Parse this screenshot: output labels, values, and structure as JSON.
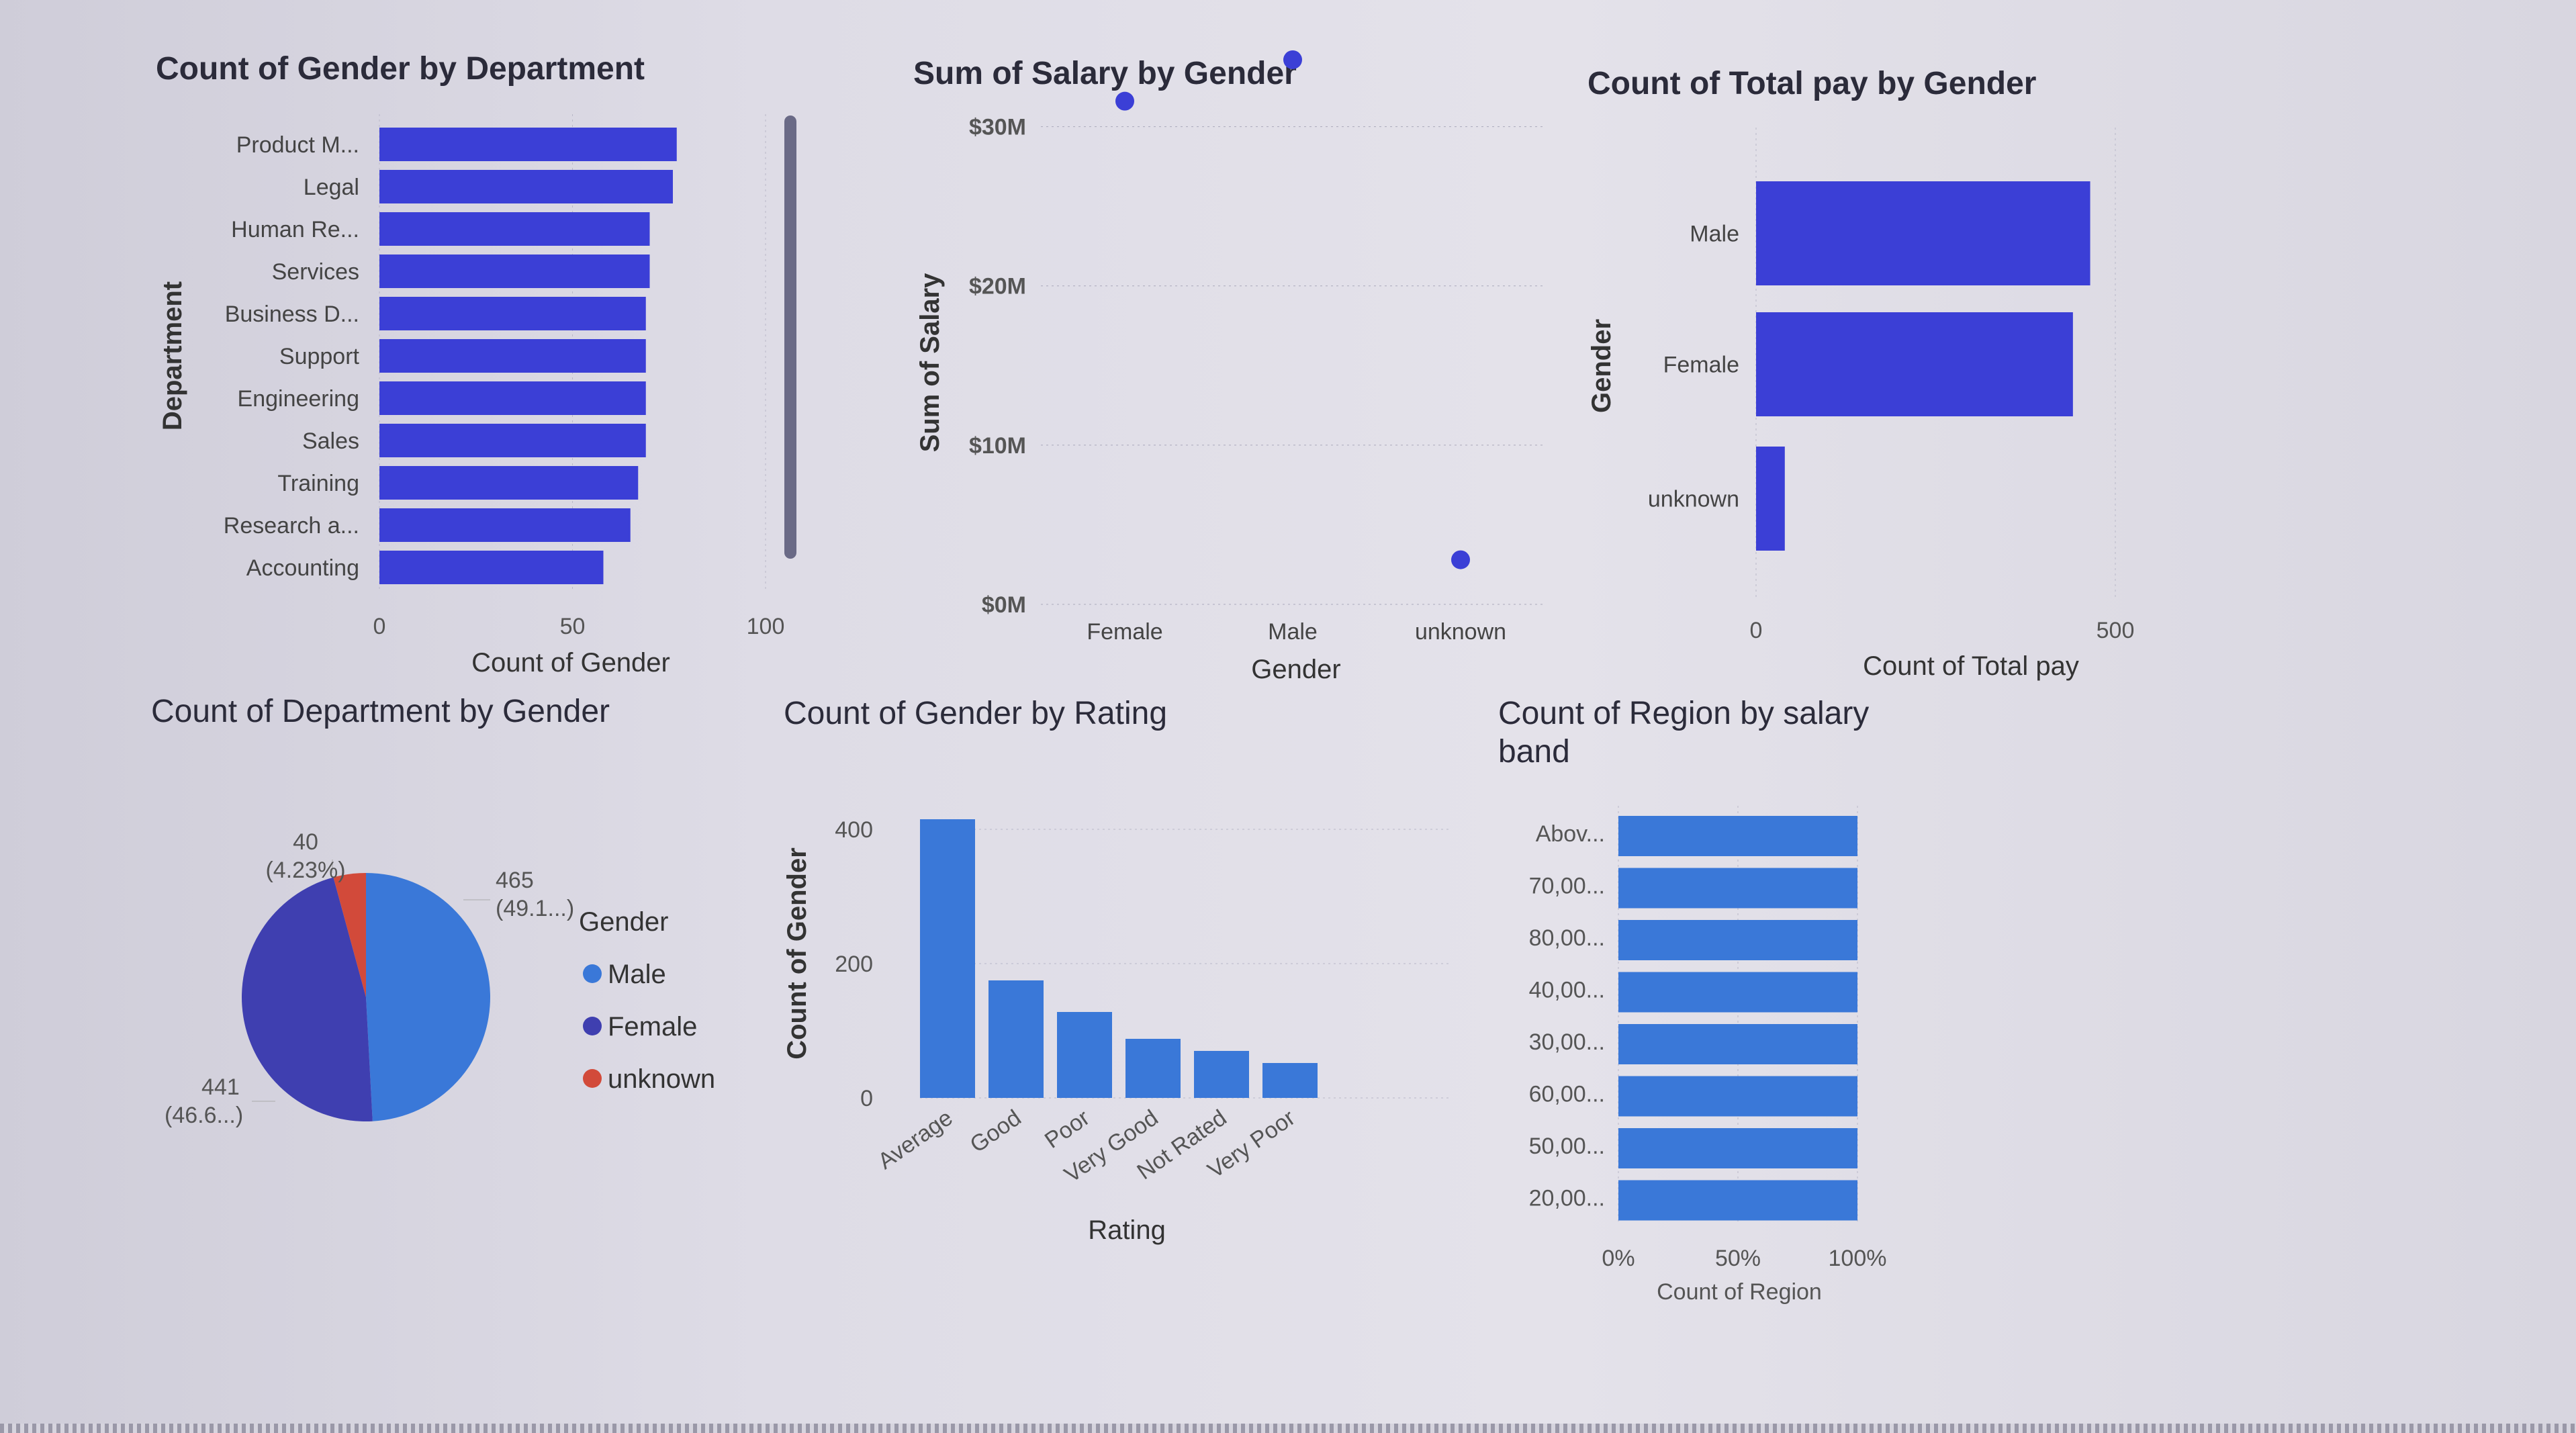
{
  "charts": [
    {
      "type": "bar",
      "title": "Count of Gender by Department",
      "xlabel": "Count of Gender",
      "ylabel": "Department",
      "xlim": [
        0,
        100
      ],
      "xticks": [
        "0",
        "50",
        "100"
      ],
      "categories": [
        "Product M...",
        "Legal",
        "Human Re...",
        "Services",
        "Business D...",
        "Support",
        "Engineering",
        "Sales",
        "Training",
        "Research a...",
        "Accounting"
      ],
      "values": [
        77,
        76,
        70,
        70,
        69,
        69,
        69,
        69,
        67,
        65,
        58
      ],
      "color": "#3b3fd6"
    },
    {
      "type": "scatter",
      "title": "Sum of Salary by Gender",
      "xlabel": "Gender",
      "ylabel": "Sum of Salary",
      "ylim": [
        0,
        35
      ],
      "yticks": [
        "$0M",
        "$10M",
        "$20M",
        "$30M"
      ],
      "categories": [
        "Female",
        "Male",
        "unknown"
      ],
      "values": [
        31.6,
        34.2,
        2.8
      ],
      "color": "#3b3fd6"
    },
    {
      "type": "bar",
      "title": "Count of Total pay by Gender",
      "xlabel": "Count of Total pay",
      "ylabel": "Gender",
      "xlim": [
        0,
        500
      ],
      "xticks": [
        "0",
        "500"
      ],
      "categories": [
        "Male",
        "Female",
        "unknown"
      ],
      "values": [
        465,
        441,
        40
      ],
      "color": "#3b3fd6"
    },
    {
      "type": "pie",
      "title": "Count of Department by Gender",
      "legend_title": "Gender",
      "legend_position": "right",
      "categories": [
        "Male",
        "Female",
        "unknown"
      ],
      "values": [
        465,
        441,
        40
      ],
      "labels": [
        {
          "value": "465",
          "pct": "(49.1...)"
        },
        {
          "value": "441",
          "pct": "(46.6...)"
        },
        {
          "value": "40",
          "pct": "(4.23%)"
        }
      ],
      "colors": [
        "#3a78d8",
        "#3f3fb0",
        "#d24a3a"
      ]
    },
    {
      "type": "bar",
      "title": "Count of Gender by Rating",
      "xlabel": "Rating",
      "ylabel": "Count of Gender",
      "ylim": [
        0,
        420
      ],
      "yticks": [
        "0",
        "200",
        "400"
      ],
      "categories": [
        "Average",
        "Good",
        "Poor",
        "Very Good",
        "Not Rated",
        "Very Poor"
      ],
      "values": [
        415,
        175,
        128,
        88,
        70,
        52
      ],
      "color": "#3a78d8"
    },
    {
      "type": "bar",
      "title": "Count of Region by salary band",
      "xlabel": "Count of Region",
      "xticks": [
        "0%",
        "50%",
        "100%"
      ],
      "categories": [
        "Abov...",
        "70,00...",
        "80,00...",
        "40,00...",
        "30,00...",
        "60,00...",
        "50,00...",
        "20,00..."
      ],
      "values": [
        100,
        100,
        100,
        100,
        100,
        100,
        100,
        100
      ],
      "color": "#3a78d8"
    }
  ]
}
